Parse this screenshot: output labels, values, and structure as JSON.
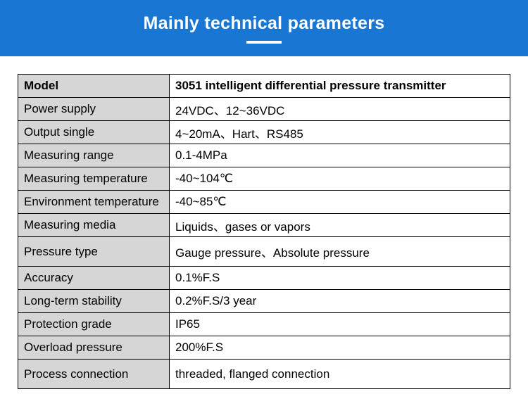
{
  "header": {
    "title": "Mainly technical parameters",
    "bg_color": "#1976d2",
    "title_color": "#ffffff",
    "underline_color": "#ffffff"
  },
  "table": {
    "label_bg": "#d6d6d6",
    "value_bg": "#ffffff",
    "border_color": "#000000",
    "font_size": 17,
    "rows": [
      {
        "label": "Model",
        "value": "3051 intelligent differential pressure transmitter",
        "label_bold": true,
        "value_bold": true
      },
      {
        "label": "Power supply",
        "value": "24VDC、12~36VDC"
      },
      {
        "label": "Output single",
        "value": "4~20mA、Hart、RS485"
      },
      {
        "label": "Measuring range",
        "value": "0.1-4MPa"
      },
      {
        "label": "Measuring temperature",
        "value": "-40~104℃"
      },
      {
        "label": "Environment temperature",
        "value": "-40~85℃"
      },
      {
        "label": "Measuring media",
        "value": "Liquids、gases or vapors"
      },
      {
        "label": "Pressure type",
        "value": "Gauge pressure、Absolute pressure",
        "tall": true
      },
      {
        "label": "Accuracy",
        "value": "0.1%F.S"
      },
      {
        "label": "Long-term stability",
        "value": "0.2%F.S/3 year"
      },
      {
        "label": "Protection grade",
        "value": "IP65"
      },
      {
        "label": "Overload pressure",
        "value": "200%F.S"
      },
      {
        "label": "Process connection",
        "value": "threaded, flanged connection",
        "tall": true
      }
    ]
  }
}
